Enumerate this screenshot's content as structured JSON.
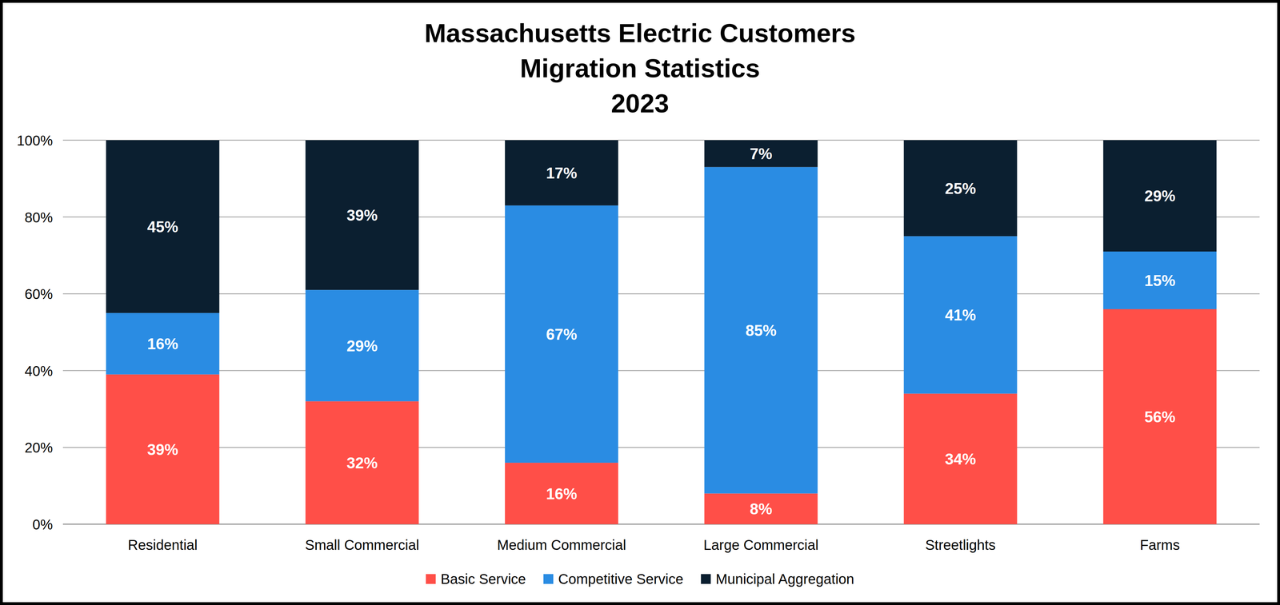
{
  "chart_data": {
    "type": "bar",
    "title": [
      "Massachusetts Electric Customers",
      "Migration Statistics",
      "2023"
    ],
    "categories": [
      "Residential",
      "Small Commercial",
      "Medium Commercial",
      "Large Commercial",
      "Streetlights",
      "Farms"
    ],
    "series": [
      {
        "name": "Basic Service",
        "color": "#ff4f48",
        "values": [
          39,
          32,
          16,
          8,
          34,
          56
        ],
        "value_labels": [
          "39%",
          "32%",
          "16%",
          "8%",
          "34%",
          "56%"
        ]
      },
      {
        "name": "Competitive Service",
        "color": "#2a8ce3",
        "values": [
          16,
          29,
          67,
          85,
          41,
          15
        ],
        "value_labels": [
          "16%",
          "29%",
          "67%",
          "85%",
          "41%",
          "15%"
        ]
      },
      {
        "name": "Municipal Aggregation",
        "color": "#0b1f30",
        "values": [
          45,
          39,
          17,
          7,
          25,
          29
        ],
        "value_labels": [
          "45%",
          "39%",
          "17%",
          "7%",
          "25%",
          "29%"
        ]
      }
    ],
    "ylim": [
      0,
      100
    ],
    "yticks": [
      {
        "value": 0,
        "label": "0%"
      },
      {
        "value": 20,
        "label": "20%"
      },
      {
        "value": 40,
        "label": "40%"
      },
      {
        "value": 60,
        "label": "60%"
      },
      {
        "value": 80,
        "label": "80%"
      },
      {
        "value": 100,
        "label": "100%"
      }
    ],
    "stacked": true,
    "data_labels": true,
    "grid": true,
    "legend": "bottom"
  }
}
